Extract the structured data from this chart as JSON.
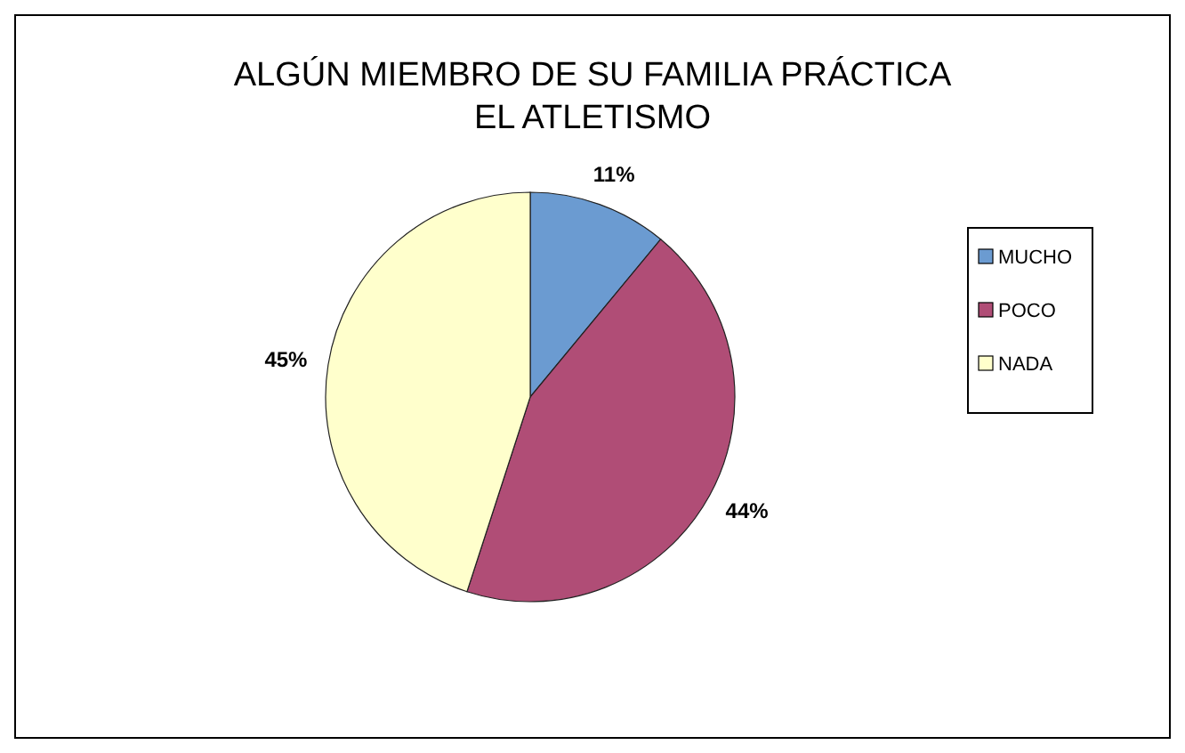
{
  "chart_data": {
    "type": "pie",
    "title": "ALGÚN MIEMBRO DE SU FAMILIA PRÁCTICA EL ATLETISMO",
    "categories": [
      "MUCHO",
      "POCO",
      "NADA"
    ],
    "values": [
      11,
      44,
      45
    ],
    "value_labels": [
      "11%",
      "44%",
      "45%"
    ],
    "colors": [
      "#6b9bd1",
      "#b04d76",
      "#ffffcc"
    ],
    "legend": "right"
  }
}
